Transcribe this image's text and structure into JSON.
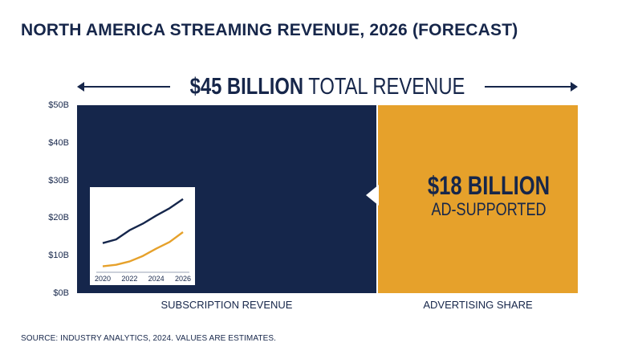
{
  "title": "NORTH AMERICA STREAMING REVENUE, 2026 (FORECAST)",
  "total": {
    "amount": "$45 BILLION",
    "label": "TOTAL REVENUE"
  },
  "ad_callout": {
    "amount": "$18 BILLION",
    "label": "AD-SUPPORTED"
  },
  "source": "SOURCE: INDUSTRY ANALYTICS, 2024. VALUES ARE ESTIMATES.",
  "colors": {
    "navy": "#15264b",
    "gold": "#e6a12b",
    "background": "#ffffff"
  },
  "chart_data": [
    {
      "type": "bar",
      "stacking": "horizontal-share",
      "title": "",
      "xlabel": "",
      "ylabel": "",
      "ylim": [
        0,
        50
      ],
      "y_ticks": [
        "$0B",
        "$10B",
        "$20B",
        "$30B",
        "$40B",
        "$50B"
      ],
      "total_billions": 45,
      "categories": [
        "SUBSCRIPTION REVENUE",
        "ADVERTISING SHARE"
      ],
      "values": [
        27,
        18
      ],
      "grid": false,
      "legend": "none"
    },
    {
      "type": "line",
      "title": "",
      "xlabel": "",
      "ylabel": "",
      "x_ticks": [
        "2020",
        "2022",
        "2024",
        "2026"
      ],
      "x": [
        2020,
        2021,
        2022,
        2023,
        2024,
        2025,
        2026
      ],
      "series": [
        {
          "color": "#15264b",
          "values": [
            13.5,
            14.5,
            17,
            18.8,
            21,
            23,
            25.5
          ]
        },
        {
          "color": "#e6a12b",
          "values": [
            7.2,
            7.6,
            8.5,
            10,
            12,
            13.8,
            16.5
          ]
        }
      ],
      "grid": false,
      "legend": "none"
    }
  ]
}
